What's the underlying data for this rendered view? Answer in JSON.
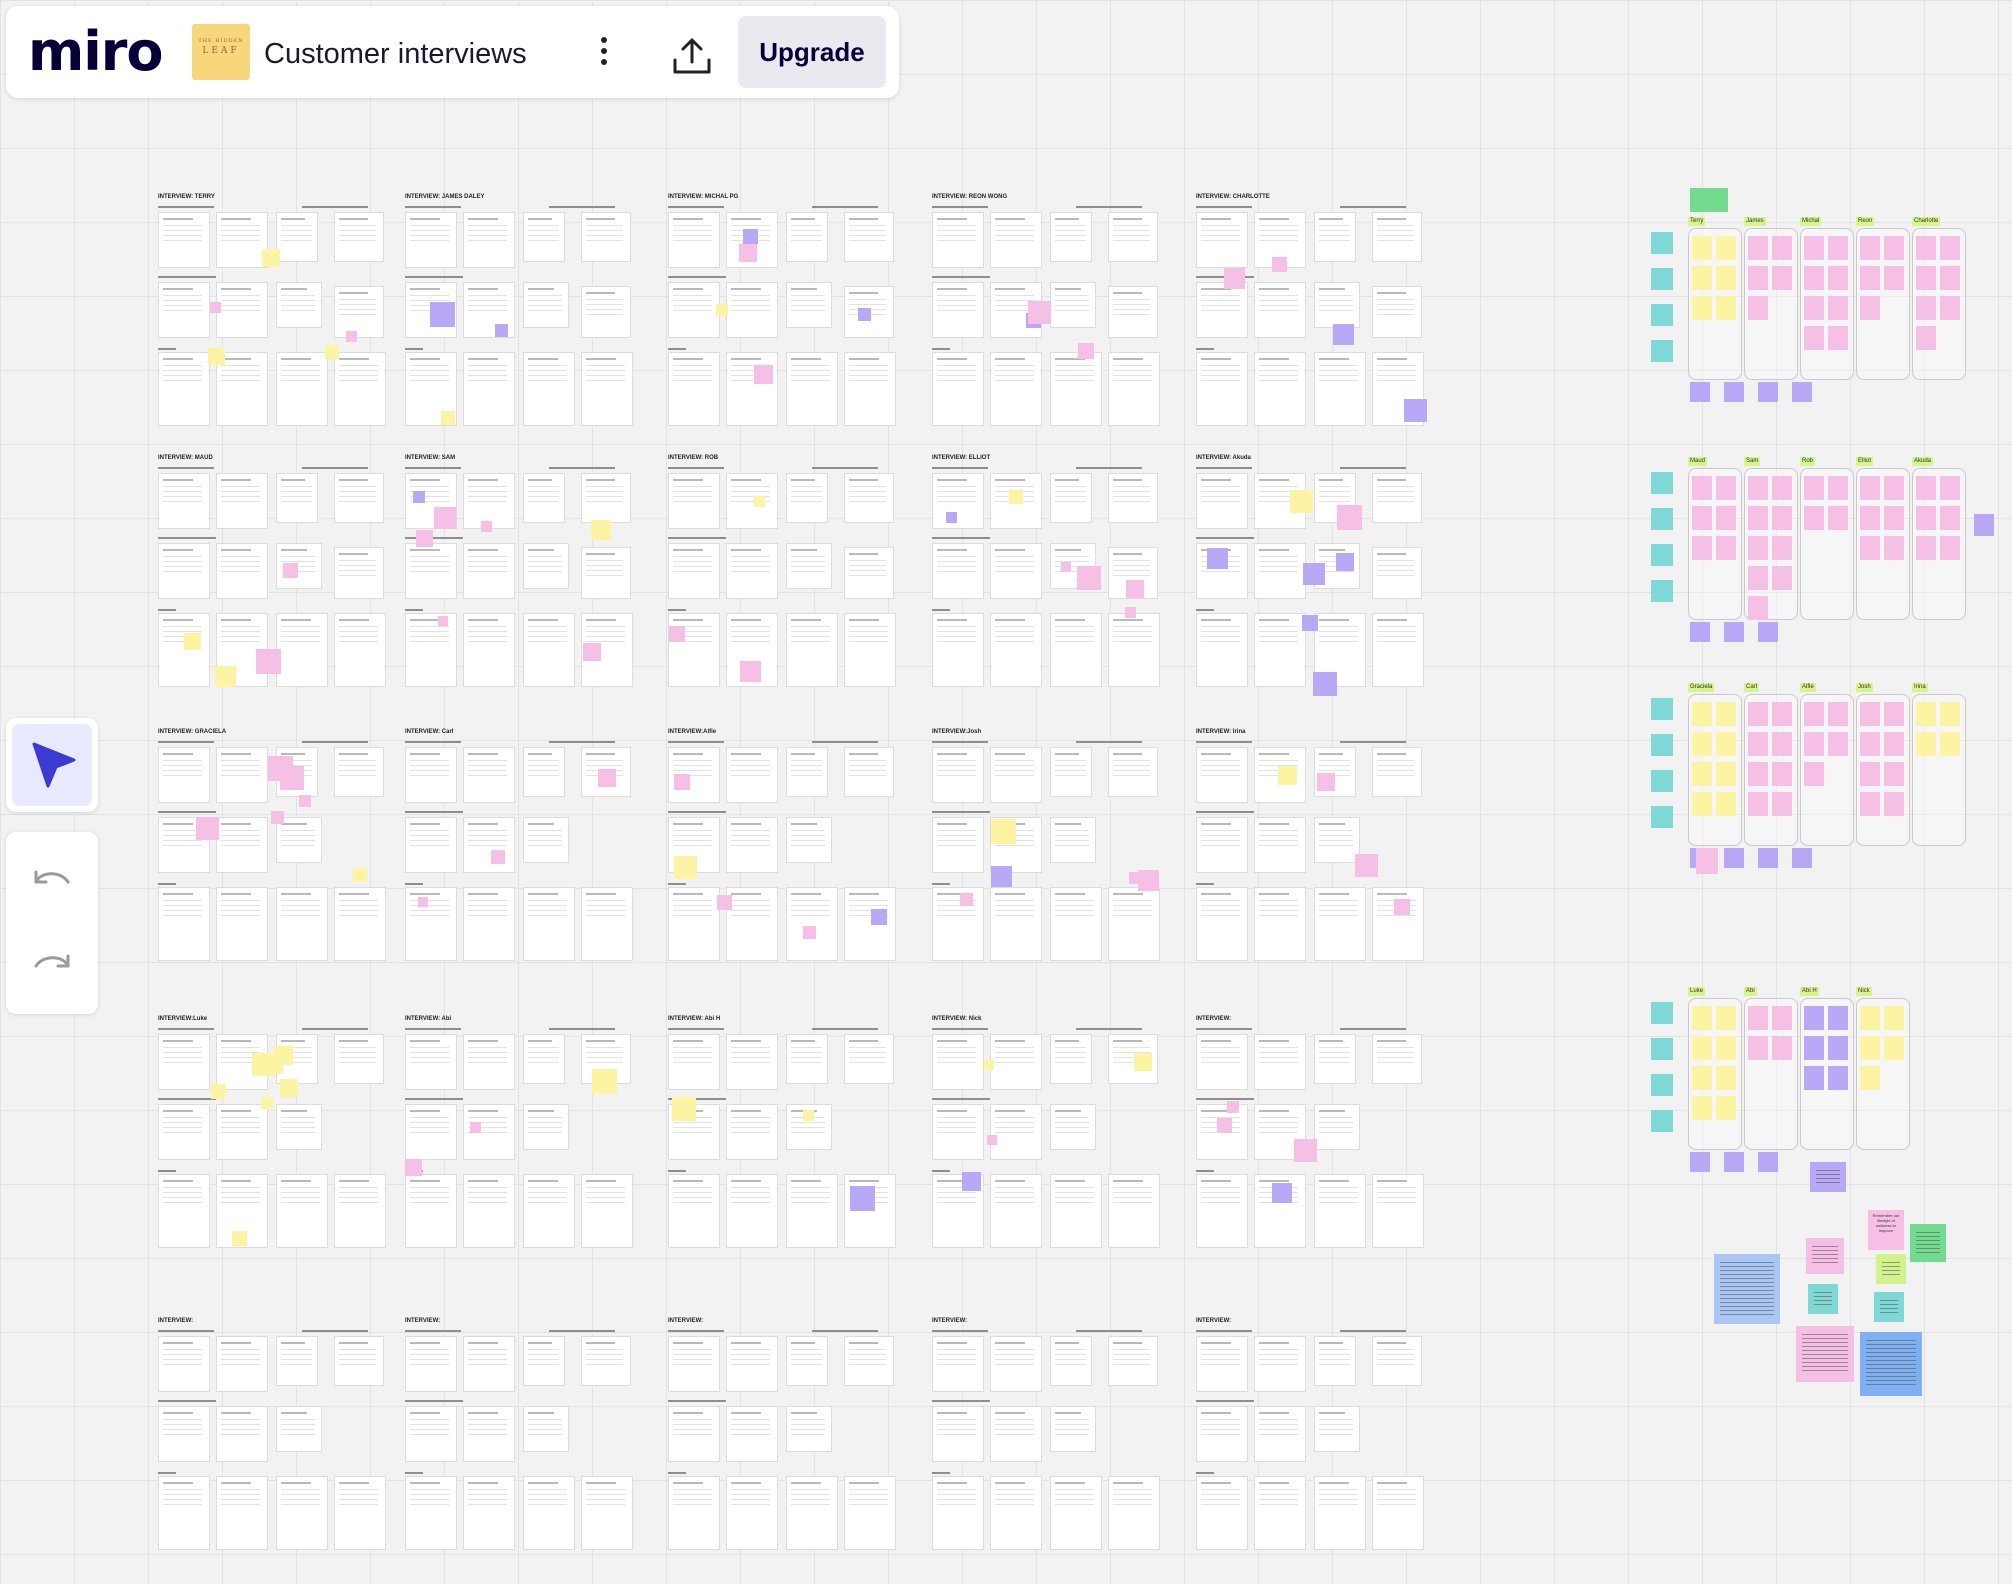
{
  "app": {
    "logo": "miro",
    "board_title": "Customer interviews",
    "thumbnail_line1": "THE HIDDEN",
    "thumbnail_line2": "LEAF"
  },
  "toolbar": {
    "upgrade_label": "Upgrade",
    "more_icon": "vertical-dots-icon",
    "share_icon": "upload-icon"
  },
  "left_toolbar": {
    "select_icon": "cursor-arrow-icon",
    "undo_icon": "undo-icon",
    "redo_icon": "redo-icon"
  },
  "colors": {
    "pink": "#f6bfe6",
    "yellow": "#fcf4a3",
    "violet": "#b9a8f5",
    "cyan": "#7ed9d6",
    "green": "#72db8f",
    "label": "#d7f58a",
    "accent": "#3b3bd1"
  },
  "interview_rows": [
    [
      "INTERVIEW: TERRY",
      "INTERVIEW: JAMES DALEY",
      "INTERVIEW: MICHAL PG",
      "INTERVIEW: REON WONG",
      "INTERVIEW: CHARLOTTE"
    ],
    [
      "INTERVIEW: MAUD",
      "INTERVIEW: SAM",
      "INTERVIEW: ROB",
      "INTERVIEW: ELLIOT",
      "INTERVIEW: Akuda"
    ],
    [
      "INTERVIEW: GRACIELA",
      "INTERVIEW: Carl",
      "INTERVIEW:Alfie",
      "INTERVIEW:Josh",
      "INTERVIEW: Irina"
    ],
    [
      "INTERVIEW:Luke",
      "INTERVIEW: Abi",
      "INTERVIEW: Abi H",
      "INTERVIEW: Nick",
      "INTERVIEW:"
    ],
    [
      "INTERVIEW:",
      "INTERVIEW:",
      "INTERVIEW:",
      "INTERVIEW:",
      "INTERVIEW:"
    ]
  ],
  "synthesis_groups": [
    [
      "Terry",
      "James",
      "Michal",
      "Reon",
      "Charlotte"
    ],
    [
      "Maud",
      "Sam",
      "Rob",
      "Elliot",
      "Akuda"
    ],
    [
      "Graciela",
      "Carl",
      "Alfie",
      "Josh",
      "Irina"
    ],
    [
      "Luke",
      "Abi",
      "Abi H",
      "Nick"
    ]
  ],
  "notes": {
    "pink_small": "Remember our lifestyle of wellness to improve"
  }
}
